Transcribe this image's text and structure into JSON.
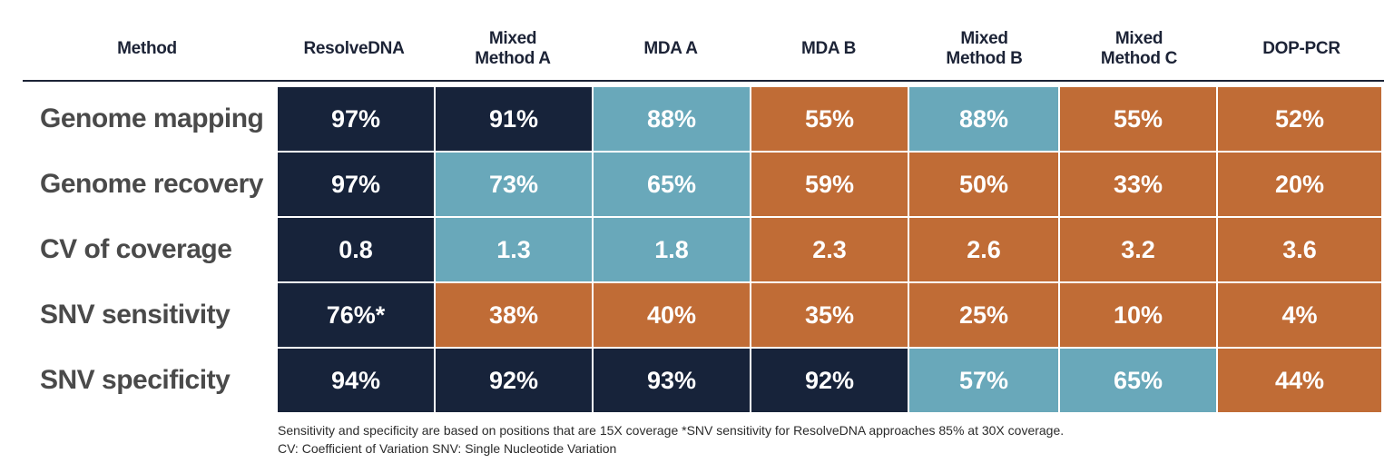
{
  "columns": [
    "Method",
    "ResolveDNA",
    "Mixed\nMethod A",
    "MDA A",
    "MDA B",
    "Mixed\nMethod B",
    "Mixed\nMethod C",
    "DOP-PCR"
  ],
  "rows": [
    {
      "label": "Genome mapping",
      "cells": [
        {
          "v": "97%",
          "c": "dark"
        },
        {
          "v": "91%",
          "c": "dark"
        },
        {
          "v": "88%",
          "c": "blue"
        },
        {
          "v": "55%",
          "c": "orange"
        },
        {
          "v": "88%",
          "c": "blue"
        },
        {
          "v": "55%",
          "c": "orange"
        },
        {
          "v": "52%",
          "c": "orange"
        }
      ]
    },
    {
      "label": "Genome recovery",
      "cells": [
        {
          "v": "97%",
          "c": "dark"
        },
        {
          "v": "73%",
          "c": "blue"
        },
        {
          "v": "65%",
          "c": "blue"
        },
        {
          "v": "59%",
          "c": "orange"
        },
        {
          "v": "50%",
          "c": "orange"
        },
        {
          "v": "33%",
          "c": "orange"
        },
        {
          "v": "20%",
          "c": "orange"
        }
      ]
    },
    {
      "label": "CV of coverage",
      "cells": [
        {
          "v": "0.8",
          "c": "dark"
        },
        {
          "v": "1.3",
          "c": "blue"
        },
        {
          "v": "1.8",
          "c": "blue"
        },
        {
          "v": "2.3",
          "c": "orange"
        },
        {
          "v": "2.6",
          "c": "orange"
        },
        {
          "v": "3.2",
          "c": "orange"
        },
        {
          "v": "3.6",
          "c": "orange"
        }
      ]
    },
    {
      "label": "SNV sensitivity",
      "cells": [
        {
          "v": "76%*",
          "c": "dark"
        },
        {
          "v": "38%",
          "c": "orange"
        },
        {
          "v": "40%",
          "c": "orange"
        },
        {
          "v": "35%",
          "c": "orange"
        },
        {
          "v": "25%",
          "c": "orange"
        },
        {
          "v": "10%",
          "c": "orange"
        },
        {
          "v": "4%",
          "c": "orange"
        }
      ]
    },
    {
      "label": "SNV specificity",
      "cells": [
        {
          "v": "94%",
          "c": "dark"
        },
        {
          "v": "92%",
          "c": "dark"
        },
        {
          "v": "93%",
          "c": "dark"
        },
        {
          "v": "92%",
          "c": "dark"
        },
        {
          "v": "57%",
          "c": "blue"
        },
        {
          "v": "65%",
          "c": "blue"
        },
        {
          "v": "44%",
          "c": "orange"
        }
      ]
    }
  ],
  "colors": {
    "dark": "#17233a",
    "blue": "#69a8ba",
    "orange": "#c06c36"
  },
  "footnotes": [
    "Sensitivity and specificity are based on positions that are 15X coverage  *SNV sensitivity for ResolveDNA approaches 85% at 30X coverage.",
    "CV: Coefficient of Variation SNV: Single Nucleotide Variation"
  ]
}
